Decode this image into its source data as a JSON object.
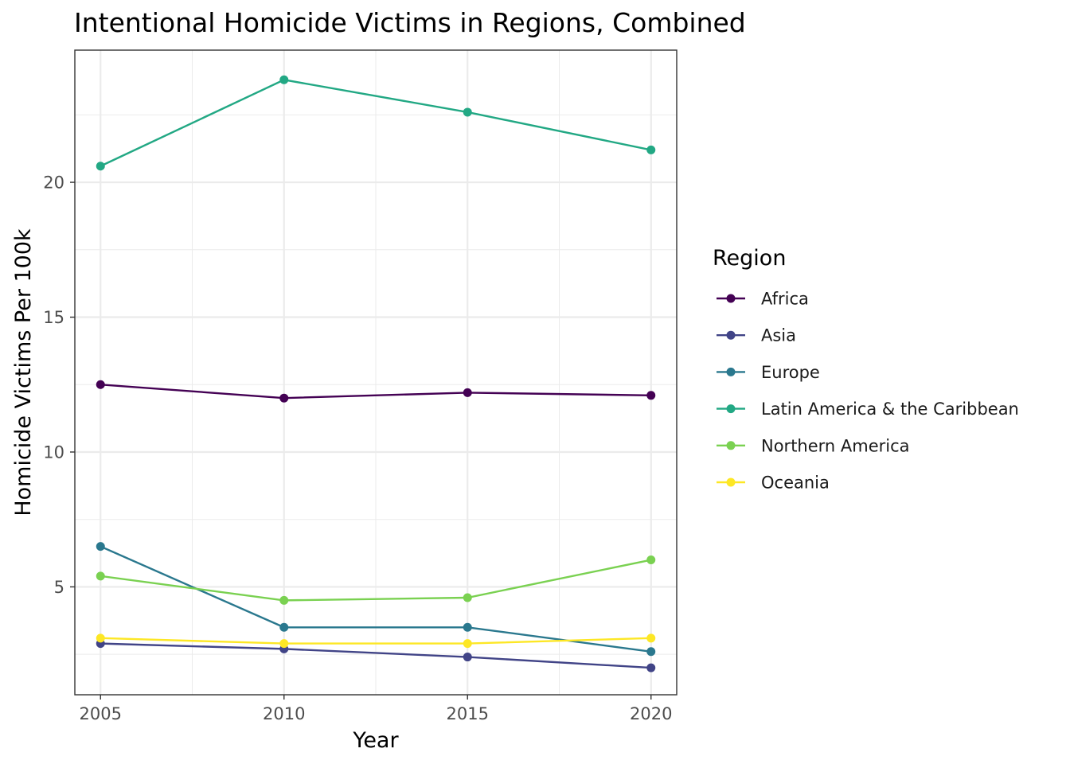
{
  "chart_data": {
    "type": "line",
    "title": "Intentional Homicide Victims in Regions, Combined",
    "xlabel": "Year",
    "ylabel": "Homicide Victims Per 100k",
    "x": [
      2005,
      2010,
      2015,
      2020
    ],
    "xlim": [
      2004.3,
      2020.7
    ],
    "ylim": [
      1.0,
      24.9
    ],
    "x_ticks": [
      2005,
      2010,
      2015,
      2020
    ],
    "y_ticks": [
      5,
      10,
      15,
      20
    ],
    "x_tick_labels": [
      "2005",
      "2010",
      "2015",
      "2020"
    ],
    "y_tick_labels": [
      "5",
      "10",
      "15",
      "20"
    ],
    "grid": true,
    "legend": {
      "title": "Region",
      "placement": "right"
    },
    "series": [
      {
        "name": "Africa",
        "color": "#440154",
        "values": [
          12.5,
          12.0,
          12.2,
          12.1
        ]
      },
      {
        "name": "Asia",
        "color": "#414487",
        "values": [
          2.9,
          2.7,
          2.4,
          2.0
        ]
      },
      {
        "name": "Europe",
        "color": "#2A788E",
        "values": [
          6.5,
          3.5,
          3.5,
          2.6
        ]
      },
      {
        "name": "Latin America & the Caribbean",
        "color": "#22A884",
        "values": [
          20.6,
          23.8,
          22.6,
          21.2
        ]
      },
      {
        "name": "Northern America",
        "color": "#7AD151",
        "values": [
          5.4,
          4.5,
          4.6,
          6.0
        ]
      },
      {
        "name": "Oceania",
        "color": "#FDE725",
        "values": [
          3.1,
          2.9,
          2.9,
          3.1
        ]
      }
    ]
  }
}
